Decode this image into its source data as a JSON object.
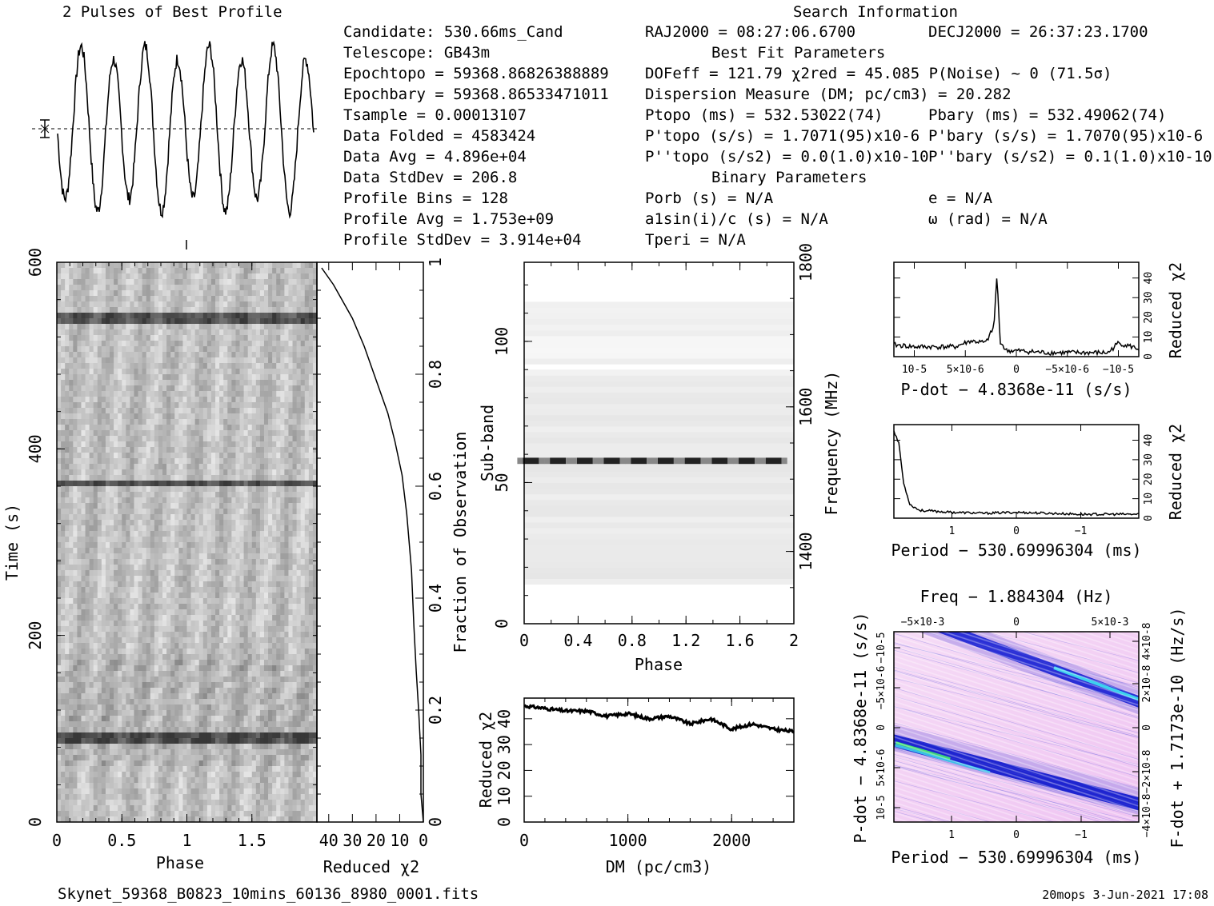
{
  "footer": {
    "filename": "Skynet_59368_B0823_10mins_60136_8980_0001.fits",
    "stamp": "20mops  3-Jun-2021 17:08"
  },
  "info": {
    "search_title": "Search Information",
    "candidate": "Candidate:  530.66ms_Cand",
    "telescope": "Telescope:  GB43m",
    "epoch_topo": "Epochtopo = 59368.86826388889",
    "epoch_bary": "Epochbary = 59368.86533471011",
    "tsample": "Tsample      =  0.00013107",
    "data_folded": "Data Folded   =  4583424",
    "data_avg": "Data Avg      =  4.896e+04",
    "data_stddev": "Data StdDev   =  206.8",
    "profile_bins": "Profile Bins  =  128",
    "profile_avg": "Profile Avg   =  1.753e+09",
    "profile_stddev": "Profile StdDev =  3.914e+04",
    "ra": "RAJ2000 = 08:27:06.6700",
    "dec": "DECJ2000 = 26:37:23.1700",
    "best_fit_title": "Best Fit Parameters",
    "dof": "DOFeff = 121.79  χ2red = 45.085  P(Noise) ~ 0   (71.5σ)",
    "dm": "Dispersion Measure (DM; pc/cm3) = 20.282",
    "p_topo": "Ptopo (ms) =  532.53022(74)",
    "p_bary": "Pbary (ms) =  532.49062(74)",
    "pd_topo": "P'topo (s/s) =  1.7071(95)x10-6",
    "pd_bary": "P'bary (s/s) =  1.7070(95)x10-6",
    "pdd_topo": "P''topo (s/s2) = 0.0(1.0)x10-10",
    "pdd_bary": "P''bary (s/s2) =  0.1(1.0)x10-10",
    "binary_title": "Binary Parameters",
    "porb": "Porb (s) = N/A",
    "asini": "a1sin(i)/c (s) = N/A",
    "tperi": "Tperi = N/A",
    "ecc": "e = N/A",
    "omega": "ω (rad) = N/A"
  },
  "chart_data": [
    {
      "id": "profile",
      "type": "line",
      "title": "2 Pulses of Best Profile",
      "xlim": [
        0,
        2
      ],
      "peaks_per_turn": 4,
      "minima_phase": [
        0.06,
        0.36,
        0.56,
        0.81,
        1.06,
        1.36,
        1.56,
        1.81
      ],
      "note_errorbar": "mean level with error bar"
    },
    {
      "id": "time-phase",
      "type": "heatmap",
      "xlabel": "Phase",
      "ylabel": "Time (s)",
      "xticks": [
        "0",
        "0.5",
        "1",
        "1.5"
      ],
      "yticks": [
        "0",
        "200",
        "400",
        "600"
      ],
      "xlim": [
        0,
        2
      ],
      "ylim": [
        0,
        600
      ],
      "dark_bands_s": [
        90,
        363,
        541
      ],
      "colormap": "grayscale"
    },
    {
      "id": "reduced-chi2-vs-time",
      "type": "line",
      "xlabel": "Reduced χ2",
      "ylabel": "Fraction of Observation",
      "xticks": [
        "40",
        "30",
        "20",
        "10",
        "0"
      ],
      "yticks": [
        "0",
        "0.2",
        "0.4",
        "0.6",
        "0.8",
        "1"
      ],
      "xlim": [
        45,
        0
      ],
      "ylim": [
        0,
        1
      ],
      "x": [
        0,
        1,
        1,
        2,
        3,
        4,
        5,
        7,
        9,
        12,
        15,
        20,
        25,
        30,
        38,
        43
      ],
      "y": [
        0,
        0.05,
        0.12,
        0.2,
        0.27,
        0.35,
        0.45,
        0.55,
        0.62,
        0.68,
        0.73,
        0.79,
        0.85,
        0.9,
        0.96,
        0.99
      ]
    },
    {
      "id": "subband-phase",
      "type": "heatmap",
      "xlabel": "Phase",
      "ylabel": "Sub-band",
      "y2label": "Frequency (MHz)",
      "xticks": [
        "0",
        "0.4",
        "0.8",
        "1.2",
        "1.6",
        "2"
      ],
      "yticks": [
        "0",
        "50",
        "100"
      ],
      "y2ticks": [
        "1400",
        "1600",
        "1800"
      ],
      "xlim": [
        0,
        2
      ],
      "ylim": [
        0,
        128
      ],
      "bright_subband": 58,
      "pulses_per_row": 10
    },
    {
      "id": "dm-chi2",
      "type": "line",
      "xlabel": "DM (pc/cm3)",
      "ylabel": "Reduced χ2",
      "xticks": [
        "0",
        "1000",
        "2000"
      ],
      "yticks": [
        "0",
        "10",
        "20",
        "30",
        "40"
      ],
      "xlim": [
        0,
        2600
      ],
      "ylim": [
        0,
        48
      ],
      "x": [
        0,
        200,
        400,
        600,
        800,
        1000,
        1200,
        1400,
        1600,
        1800,
        2000,
        2200,
        2400,
        2600
      ],
      "y": [
        45,
        44,
        43,
        43,
        41,
        42,
        40,
        41,
        38,
        40,
        36,
        38,
        36,
        35
      ]
    },
    {
      "id": "pdot-chi2",
      "type": "line",
      "xlabel": "P-dot − 4.8368e-11 (s/s)",
      "ylabel": "Reduced χ2",
      "xticks": [
        "10-5",
        "5×10-6",
        "0",
        "−5×10-6",
        "−10-5"
      ],
      "yticks": [
        "0",
        "10",
        "20",
        "30",
        "40"
      ],
      "xlim": [
        1.2e-05,
        -1.2e-05
      ],
      "ylim": [
        0,
        48
      ],
      "x": [
        1.2e-05,
        1e-05,
        8e-06,
        6e-06,
        4.5e-06,
        3e-06,
        2.2e-06,
        1.9e-06,
        1.6e-06,
        1e-06,
        0,
        -3e-06,
        -6e-06,
        -9e-06,
        -1e-05,
        -1.2e-05
      ],
      "y": [
        6,
        5,
        5,
        5,
        8,
        7,
        15,
        42,
        8,
        3,
        3,
        2,
        2,
        2,
        7,
        4
      ]
    },
    {
      "id": "period-chi2",
      "type": "line",
      "xlabel": "Period − 530.69996304 (ms)",
      "ylabel": "Reduced χ2",
      "xticks": [
        "1",
        "0",
        "−1"
      ],
      "yticks": [
        "0",
        "10",
        "20",
        "30",
        "40"
      ],
      "xlim": [
        1.9,
        -1.9
      ],
      "ylim": [
        0,
        48
      ],
      "x": [
        1.9,
        1.82,
        1.75,
        1.65,
        1.5,
        1.0,
        0.5,
        0,
        -0.5,
        -1.0,
        -1.5,
        -1.9
      ],
      "y": [
        45,
        38,
        18,
        7,
        4,
        3,
        2.5,
        3,
        2.5,
        2,
        2,
        2
      ]
    },
    {
      "id": "p-pdot-plane",
      "type": "heatmap",
      "title": "Freq − 1.884304 (Hz)",
      "xlabel": "Period − 530.69996304 (ms)",
      "ylabel": "P-dot − 4.8368e-11 (s/s)",
      "y2label": "F-dot + 1.7173e-10 (Hz/s)",
      "xticks": [
        "1",
        "0",
        "−1"
      ],
      "x2ticks": [
        "−5×10-3",
        "0",
        "5×10-3"
      ],
      "yticks": [
        "10-5",
        "5×10-6",
        "0",
        "−5×10-6",
        "−10-5"
      ],
      "y2ticks": [
        "−4×10-8",
        "−2×10-8",
        "0",
        "2×10-8",
        "4×10-8"
      ],
      "colormap": "blue-pink"
    }
  ],
  "colors": {
    "ink": "#000000",
    "accent_blue": "#1a1fd1",
    "accent_cyan": "#35c6e8",
    "accent_green": "#3fe06a",
    "base_pink": "#f3cef4"
  }
}
